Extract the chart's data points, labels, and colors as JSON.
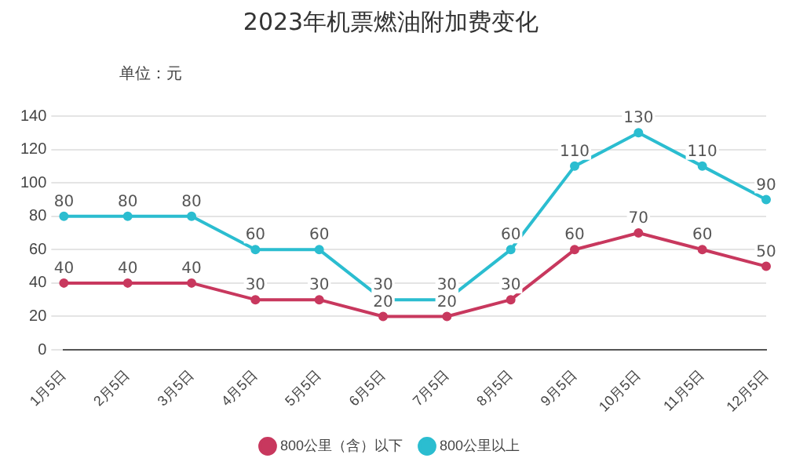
{
  "chart_data": {
    "type": "line",
    "title": "2023年机票燃油附加费变化",
    "annotations": [
      "单位：元"
    ],
    "categories": [
      "1月5日",
      "2月5日",
      "3月5日",
      "4月5日",
      "5月5日",
      "6月5日",
      "7月5日",
      "8月5日",
      "9月5日",
      "10月5日",
      "11月5日",
      "12月5日"
    ],
    "series": [
      {
        "name": "800公里（含）以下",
        "color": "#c8385e",
        "values": [
          40,
          40,
          40,
          30,
          30,
          20,
          20,
          30,
          60,
          70,
          60,
          50
        ]
      },
      {
        "name": "800公里以上",
        "color": "#2bbdd0",
        "values": [
          80,
          80,
          80,
          60,
          60,
          30,
          30,
          60,
          110,
          130,
          110,
          90
        ]
      }
    ],
    "ylim": [
      0,
      140
    ],
    "yticks": [
      0,
      20,
      40,
      60,
      80,
      100,
      120,
      140
    ],
    "grid": "y",
    "legend": "bottom",
    "marker": "circle",
    "line_style": "solid",
    "data_labels": true
  }
}
